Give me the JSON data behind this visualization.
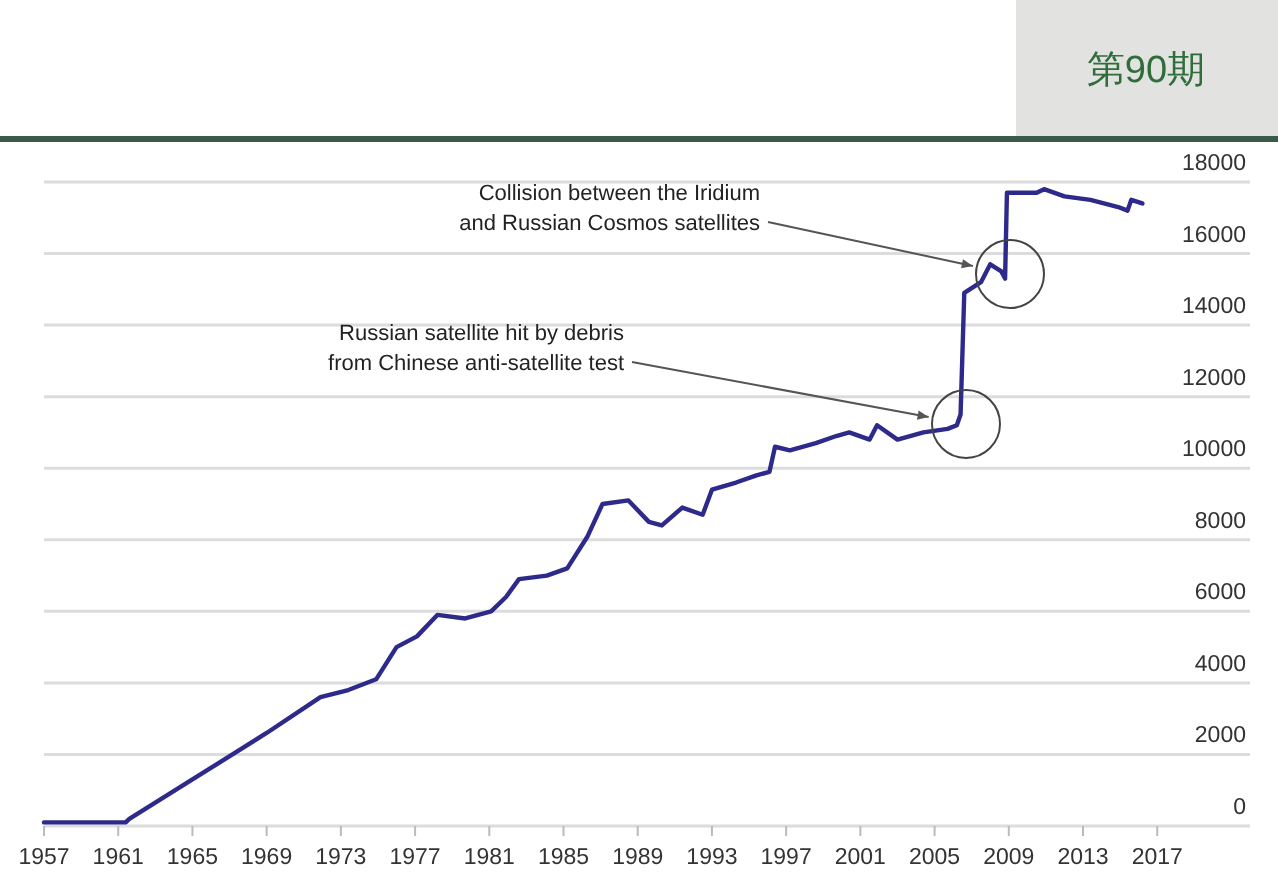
{
  "chart_data": {
    "type": "line",
    "x": [
      1957,
      1961.4,
      1961.6,
      1965,
      1969,
      1971.9,
      1973.4,
      1974.9,
      1976,
      1977.1,
      1978.2,
      1979.7,
      1981.1,
      1981.9,
      1982.6,
      1984.1,
      1985.2,
      1986.3,
      1987.1,
      1988.5,
      1989.6,
      1990.3,
      1991.4,
      1992.5,
      1993,
      1994.3,
      1995.4,
      1996.1,
      1996.4,
      1997.2,
      1998.6,
      1999.7,
      2000.4,
      2001.5,
      2001.9,
      2003,
      2004.4,
      2005.7,
      2006.2,
      2006.4,
      2006.6,
      2007.5,
      2008,
      2008.6,
      2008.8,
      2008.9,
      2010.5,
      2010.9,
      2012,
      2013.4,
      2014.9,
      2015.4,
      2015.6,
      2016.2
    ],
    "series": [
      {
        "color": "#2e2a8c",
        "values": [
          100,
          100,
          200,
          1300,
          2600,
          3600,
          3800,
          4100,
          5000,
          5300,
          5900,
          5800,
          6000,
          6400,
          6900,
          7000,
          7200,
          8100,
          9000,
          9100,
          8500,
          8400,
          8900,
          8700,
          9400,
          9600,
          9800,
          9900,
          10600,
          10500,
          10700,
          10900,
          11000,
          10800,
          11200,
          10800,
          11000,
          11100,
          11200,
          11500,
          14900,
          15200,
          15700,
          15500,
          15300,
          17700,
          17700,
          17800,
          17600,
          17500,
          17300,
          17200,
          17500,
          17400
        ]
      }
    ],
    "xlim": [
      1957,
      2022
    ],
    "ylim": [
      0,
      18000
    ],
    "xticks": [
      1957,
      1961,
      1965,
      1969,
      1973,
      1977,
      1981,
      1985,
      1989,
      1993,
      1997,
      2001,
      2005,
      2009,
      2013,
      2017
    ],
    "yticks": [
      0,
      2000,
      4000,
      6000,
      8000,
      10000,
      12000,
      14000,
      16000,
      18000
    ],
    "grid": "y",
    "marker": "none",
    "line_style": "solid",
    "annotations": [
      "Collision between the Iridium\nand Russian Cosmos satellites",
      "Russian satellite hit by debris\nfrom Chinese anti-satellite test",
      "第90期"
    ]
  }
}
